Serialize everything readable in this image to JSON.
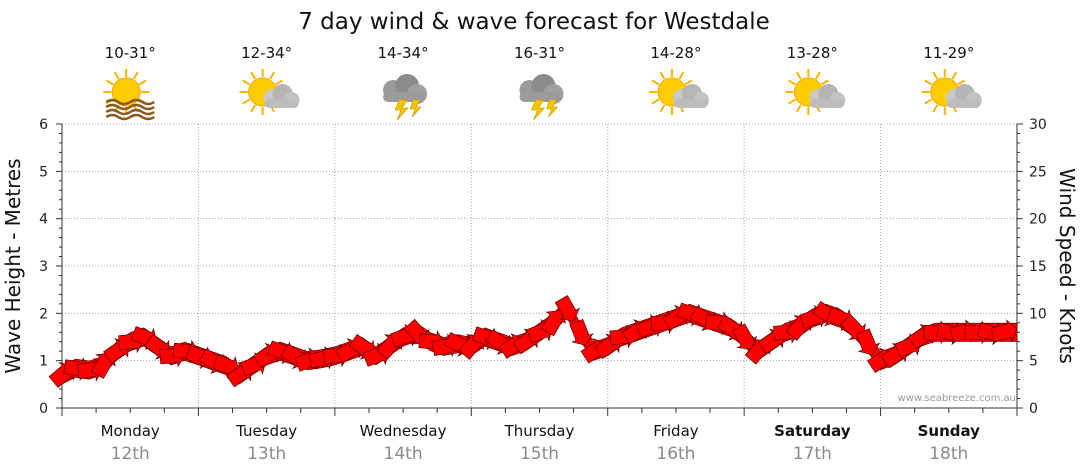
{
  "chart_data": {
    "type": "line",
    "title": "7 day wind & wave forecast for Westdale",
    "ylabel_left": "Wave Height - Metres",
    "ylabel_right": "Wind Speed - Knots",
    "ylim_left": [
      0,
      6
    ],
    "ylim_right": [
      0,
      30
    ],
    "yticks_left": [
      "0",
      "1",
      "2",
      "3",
      "4",
      "5",
      "6"
    ],
    "yticks_right": [
      "0",
      "5",
      "10",
      "15",
      "20",
      "25",
      "30"
    ],
    "grid": true,
    "days": [
      {
        "name": "Monday",
        "date": "12th",
        "temp": "10-31°",
        "icon": "sunny-haze-icon",
        "bold": false
      },
      {
        "name": "Tuesday",
        "date": "13th",
        "temp": "12-34°",
        "icon": "partly-cloudy-icon",
        "bold": false
      },
      {
        "name": "Wednesday",
        "date": "14th",
        "temp": "14-34°",
        "icon": "thunderstorm-icon",
        "bold": false
      },
      {
        "name": "Thursday",
        "date": "15th",
        "temp": "16-31°",
        "icon": "thunderstorm-icon",
        "bold": false
      },
      {
        "name": "Friday",
        "date": "16th",
        "temp": "14-28°",
        "icon": "partly-cloudy-icon",
        "bold": false
      },
      {
        "name": "Saturday",
        "date": "17th",
        "temp": "13-28°",
        "icon": "partly-cloudy-icon",
        "bold": true
      },
      {
        "name": "Sunday",
        "date": "18th",
        "temp": "11-29°",
        "icon": "partly-cloudy-icon",
        "bold": true
      }
    ],
    "series": [
      {
        "name": "Wind Speed (knots)",
        "color": "#ff0000",
        "x_days": [
          0,
          0.1,
          0.2,
          0.3,
          0.4,
          0.5,
          0.6,
          0.7,
          0.8,
          0.9,
          1.0,
          1.1,
          1.2,
          1.3,
          1.4,
          1.5,
          1.6,
          1.7,
          1.8,
          1.9,
          2.0,
          2.1,
          2.2,
          2.3,
          2.4,
          2.5,
          2.6,
          2.7,
          2.8,
          2.9,
          3.0,
          3.1,
          3.2,
          3.3,
          3.4,
          3.5,
          3.6,
          3.7,
          3.8,
          3.9,
          4.0,
          4.1,
          4.2,
          4.3,
          4.4,
          4.5,
          4.6,
          4.7,
          4.8,
          4.9,
          5.0,
          5.1,
          5.2,
          5.3,
          5.4,
          5.5,
          5.6,
          5.7,
          5.8,
          5.9,
          6.0,
          6.1,
          6.2,
          6.3,
          6.4,
          6.5,
          6.6,
          6.7,
          6.8,
          6.9,
          7.0
        ],
        "values": [
          3.5,
          4.2,
          4.0,
          4.5,
          6.0,
          7.0,
          7.5,
          6.5,
          5.5,
          6.0,
          5.5,
          5.0,
          4.5,
          3.5,
          4.5,
          5.5,
          6.0,
          5.5,
          5.0,
          5.2,
          5.5,
          6.0,
          6.5,
          5.5,
          6.5,
          7.5,
          8.0,
          7.0,
          6.5,
          6.8,
          6.5,
          7.5,
          7.0,
          6.5,
          7.0,
          8.0,
          9.0,
          10.5,
          8.0,
          6.0,
          6.5,
          7.5,
          8.0,
          8.5,
          9.0,
          9.5,
          10.0,
          9.5,
          9.0,
          8.5,
          7.5,
          6.0,
          7.0,
          8.0,
          8.5,
          9.5,
          10.0,
          9.5,
          8.5,
          7.0,
          5.0,
          5.5,
          6.5,
          7.5,
          8.0,
          8.0,
          8.0,
          8.0,
          8.0,
          8.0,
          8.0
        ]
      }
    ]
  },
  "credit": "www.seabreeze.com.au"
}
